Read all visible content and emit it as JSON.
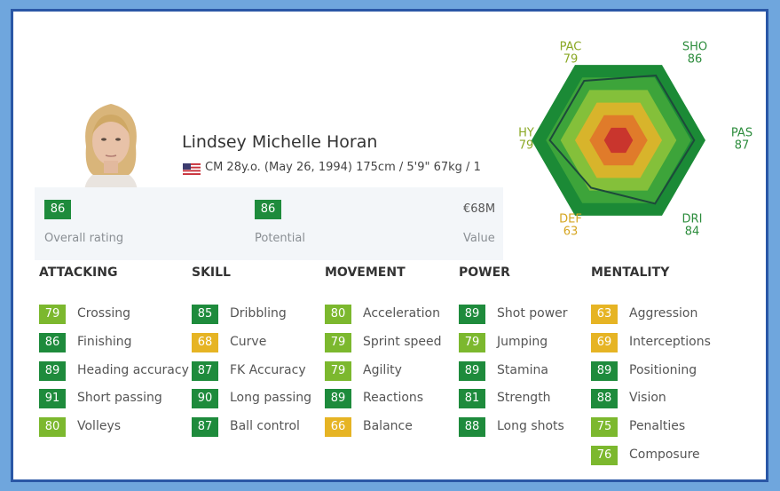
{
  "player": {
    "name": "Lindsey Michelle Horan",
    "info": "CM 28y.o. (May 26, 1994) 175cm / 5'9\" 67kg / 1"
  },
  "summary": [
    {
      "value": 86,
      "label": "Overall rating",
      "color": "#1e8b3c"
    },
    {
      "value": 86,
      "label": "Potential",
      "color": "#1e8b3c"
    },
    {
      "value": "€68M",
      "label": "Value"
    }
  ],
  "radar": {
    "axes": [
      {
        "label": "PAC",
        "value": 79,
        "color": "#8aa825"
      },
      {
        "label": "SHO",
        "value": 86,
        "color": "#2c8c3c"
      },
      {
        "label": "PAS",
        "value": 87,
        "color": "#2c8c3c"
      },
      {
        "label": "DRI",
        "value": 84,
        "color": "#2c8c3c"
      },
      {
        "label": "DEF",
        "value": 63,
        "color": "#d6a622"
      },
      {
        "label": "HY",
        "value": 79,
        "color": "#8aa825"
      }
    ],
    "rings": [
      "#1b8a36",
      "#3da43a",
      "#84c03a",
      "#d8b42b",
      "#e07b2a",
      "#c9352d"
    ]
  },
  "groups": [
    {
      "title": "ATTACKING",
      "stats": [
        {
          "name": "Crossing",
          "value": 79,
          "color": "#7cb82e"
        },
        {
          "name": "Finishing",
          "value": 86,
          "color": "#1e8b3c"
        },
        {
          "name": "Heading accuracy",
          "value": 89,
          "color": "#1e8b3c"
        },
        {
          "name": "Short passing",
          "value": 91,
          "color": "#1e8b3c"
        },
        {
          "name": "Volleys",
          "value": 80,
          "color": "#7cb82e"
        }
      ]
    },
    {
      "title": "SKILL",
      "stats": [
        {
          "name": "Dribbling",
          "value": 85,
          "color": "#1e8b3c"
        },
        {
          "name": "Curve",
          "value": 68,
          "color": "#e6b424"
        },
        {
          "name": "FK Accuracy",
          "value": 87,
          "color": "#1e8b3c"
        },
        {
          "name": "Long passing",
          "value": 90,
          "color": "#1e8b3c"
        },
        {
          "name": "Ball control",
          "value": 87,
          "color": "#1e8b3c"
        }
      ]
    },
    {
      "title": "MOVEMENT",
      "stats": [
        {
          "name": "Acceleration",
          "value": 80,
          "color": "#7cb82e"
        },
        {
          "name": "Sprint speed",
          "value": 79,
          "color": "#7cb82e"
        },
        {
          "name": "Agility",
          "value": 79,
          "color": "#7cb82e"
        },
        {
          "name": "Reactions",
          "value": 89,
          "color": "#1e8b3c"
        },
        {
          "name": "Balance",
          "value": 66,
          "color": "#e6b424"
        }
      ]
    },
    {
      "title": "POWER",
      "stats": [
        {
          "name": "Shot power",
          "value": 89,
          "color": "#1e8b3c"
        },
        {
          "name": "Jumping",
          "value": 79,
          "color": "#7cb82e"
        },
        {
          "name": "Stamina",
          "value": 89,
          "color": "#1e8b3c"
        },
        {
          "name": "Strength",
          "value": 81,
          "color": "#1e8b3c"
        },
        {
          "name": "Long shots",
          "value": 88,
          "color": "#1e8b3c"
        }
      ]
    },
    {
      "title": "MENTALITY",
      "stats": [
        {
          "name": "Aggression",
          "value": 63,
          "color": "#e6b424"
        },
        {
          "name": "Interceptions",
          "value": 69,
          "color": "#e6b424"
        },
        {
          "name": "Positioning",
          "value": 89,
          "color": "#1e8b3c"
        },
        {
          "name": "Vision",
          "value": 88,
          "color": "#1e8b3c"
        },
        {
          "name": "Penalties",
          "value": 75,
          "color": "#7cb82e"
        },
        {
          "name": "Composure",
          "value": 76,
          "color": "#7cb82e"
        }
      ]
    }
  ]
}
